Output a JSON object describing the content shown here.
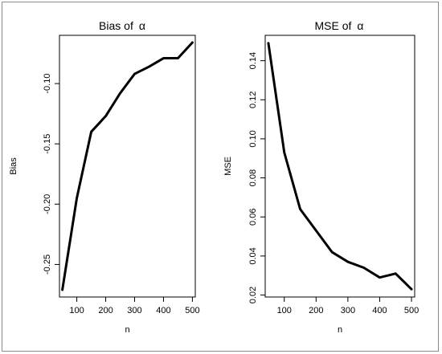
{
  "chart_data": [
    {
      "type": "line",
      "title_prefix": "Bias of",
      "title_symbol": "α",
      "xlabel": "n",
      "ylabel": "Bias",
      "x": [
        50,
        100,
        150,
        200,
        250,
        300,
        350,
        400,
        450,
        500
      ],
      "series": [
        {
          "values": [
            -0.271,
            -0.195,
            -0.14,
            -0.127,
            -0.108,
            -0.092,
            -0.086,
            -0.079,
            -0.079,
            -0.066
          ]
        }
      ],
      "xlim": [
        40,
        510
      ],
      "ylim": [
        -0.277,
        -0.06
      ],
      "xticks": [
        100,
        200,
        300,
        400,
        500
      ],
      "xtick_labels": [
        "100",
        "200",
        "300",
        "400",
        "500"
      ],
      "yticks": [
        -0.25,
        -0.2,
        -0.15,
        -0.1
      ],
      "ytick_labels": [
        "-0.25",
        "-0.20",
        "-0.15",
        "-0.10"
      ],
      "grid": false,
      "line_color": "#000000"
    },
    {
      "type": "line",
      "title_prefix": "MSE of",
      "title_symbol": "α",
      "xlabel": "n",
      "ylabel": "MSE",
      "x": [
        50,
        100,
        150,
        200,
        250,
        300,
        350,
        400,
        450,
        500
      ],
      "series": [
        {
          "values": [
            0.149,
            0.093,
            0.064,
            0.053,
            0.042,
            0.037,
            0.034,
            0.029,
            0.031,
            0.023
          ]
        }
      ],
      "xlim": [
        40,
        510
      ],
      "ylim": [
        0.019,
        0.153
      ],
      "xticks": [
        100,
        200,
        300,
        400,
        500
      ],
      "xtick_labels": [
        "100",
        "200",
        "300",
        "400",
        "500"
      ],
      "yticks": [
        0.02,
        0.04,
        0.06,
        0.08,
        0.1,
        0.12,
        0.14
      ],
      "ytick_labels": [
        "0.02",
        "0.04",
        "0.06",
        "0.08",
        "0.10",
        "0.12",
        "0.14"
      ],
      "grid": false,
      "line_color": "#000000"
    }
  ]
}
